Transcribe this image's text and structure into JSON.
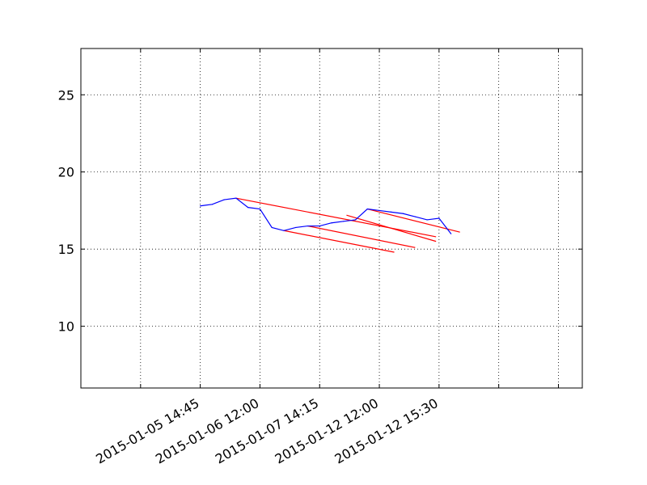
{
  "chart_data": {
    "type": "line",
    "title": "",
    "xlabel": "",
    "ylabel": "",
    "ylim": [
      6,
      28
    ],
    "yticks": [
      10,
      15,
      20,
      25
    ],
    "xticks": [
      {
        "label": "",
        "x": 0
      },
      {
        "label": "2015-01-05 14:45",
        "x": 1
      },
      {
        "label": "2015-01-06 12:00",
        "x": 2
      },
      {
        "label": "2015-01-07 14:15",
        "x": 3
      },
      {
        "label": "2015-01-12 12:00",
        "x": 4
      },
      {
        "label": "2015-01-12 15:30",
        "x": 5
      },
      {
        "label": "",
        "x": 6
      },
      {
        "label": "",
        "x": 7
      }
    ],
    "xlim": [
      -1,
      7.4
    ],
    "grid": true,
    "series": [
      {
        "color": "#0000ff",
        "x": [
          1.0,
          1.2,
          1.4,
          1.6,
          1.8,
          2.0,
          2.2,
          2.4,
          2.6,
          2.8,
          3.0,
          3.2,
          3.4,
          3.6,
          3.8,
          4.0,
          4.2,
          4.4,
          4.6,
          4.8,
          5.0,
          5.2
        ],
        "y": [
          17.8,
          17.9,
          18.2,
          18.3,
          17.7,
          17.6,
          16.4,
          16.2,
          16.4,
          16.5,
          16.5,
          16.7,
          16.8,
          16.9,
          17.6,
          17.5,
          17.4,
          17.3,
          17.1,
          16.9,
          17.0,
          16.0
        ]
      }
    ],
    "segments": [
      {
        "color": "#ff0000",
        "x": [
          1.6,
          4.95
        ],
        "y": [
          18.3,
          15.8
        ]
      },
      {
        "color": "#ff0000",
        "x": [
          2.4,
          4.25
        ],
        "y": [
          16.2,
          14.8
        ]
      },
      {
        "color": "#ff0000",
        "x": [
          2.8,
          4.6
        ],
        "y": [
          16.5,
          15.1
        ]
      },
      {
        "color": "#ff0000",
        "x": [
          3.45,
          4.95
        ],
        "y": [
          17.2,
          15.5
        ]
      },
      {
        "color": "#ff0000",
        "x": [
          3.8,
          5.35
        ],
        "y": [
          17.6,
          16.1
        ]
      }
    ]
  }
}
